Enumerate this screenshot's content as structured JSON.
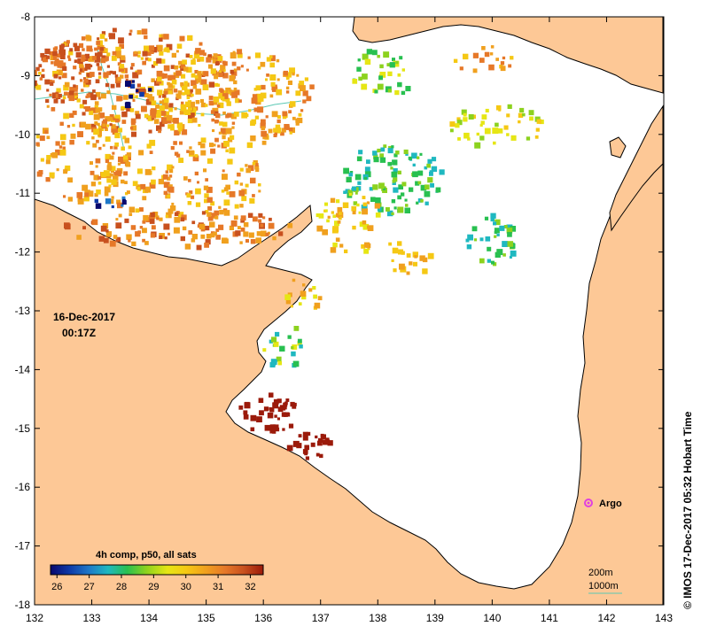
{
  "map": {
    "date": "16-Dec-2017",
    "time": "00:17Z",
    "credit": "© IMOS 17-Dec-2017 05:32 Hobart Time",
    "longitude_ticks": [
      "132",
      "133",
      "134",
      "135",
      "136",
      "137",
      "138",
      "139",
      "140",
      "141",
      "142",
      "143"
    ],
    "latitude_ticks": [
      "-8",
      "-9",
      "-10",
      "-11",
      "-12",
      "-13",
      "-14",
      "-15",
      "-16",
      "-17",
      "-18"
    ],
    "lon_range": [
      132,
      143
    ],
    "lat_range": [
      -18,
      -8
    ]
  },
  "colorbar": {
    "title": "4h comp, p50, all sats",
    "tick_labels": [
      "26",
      "27",
      "28",
      "29",
      "30",
      "31",
      "32"
    ],
    "min": 25.8,
    "max": 32.4,
    "colors": [
      "#08086e",
      "#0d3aa8",
      "#1f78c8",
      "#1fb8c0",
      "#28c050",
      "#8cd21e",
      "#e6e614",
      "#f5c814",
      "#f0a01e",
      "#e67828",
      "#c8501e",
      "#9b1a0a"
    ]
  },
  "legend": {
    "argo_label": "Argo",
    "argo_color": "#e040e0",
    "contour_200m": "200m",
    "contour_1000m": "1000m"
  },
  "colors": {
    "land": "#fdc896",
    "ocean": "#ffffff",
    "coastline": "#000000",
    "contour": "#5cc8b4"
  }
}
